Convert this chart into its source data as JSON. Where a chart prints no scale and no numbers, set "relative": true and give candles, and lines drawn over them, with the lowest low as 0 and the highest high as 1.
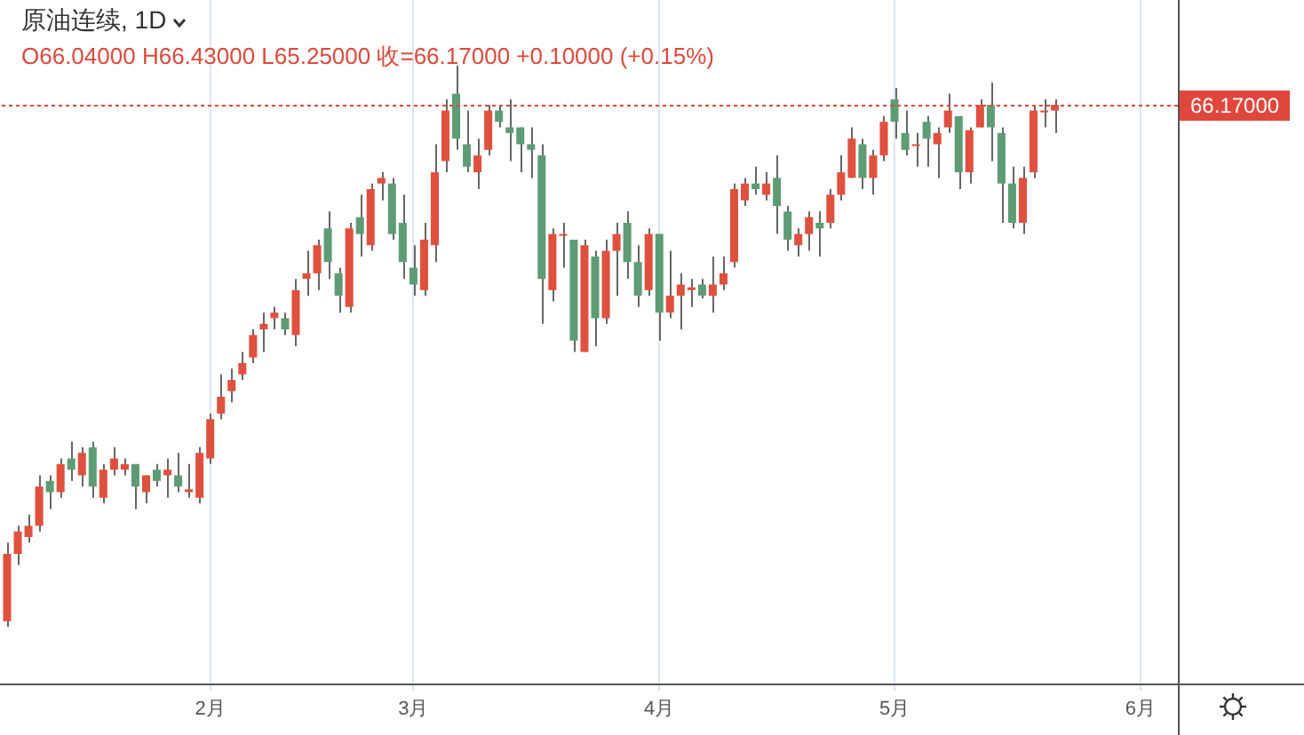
{
  "chart_data": {
    "type": "candlestick",
    "title": "原油连续, 1D",
    "subtitle": "O66.04000 H66.43000 L65.25000 收=66.17000 +0.10000 (+0.15%)",
    "relative": true,
    "grid": "x",
    "tick_labels": "x",
    "categories": [
      null,
      null,
      null,
      null,
      null,
      null,
      null,
      null,
      null,
      null,
      null,
      null,
      null,
      null,
      null,
      null,
      null,
      null,
      null,
      "2月",
      null,
      null,
      null,
      null,
      null,
      null,
      null,
      null,
      null,
      null,
      null,
      null,
      null,
      null,
      null,
      null,
      null,
      null,
      "3月",
      null,
      null,
      null,
      null,
      null,
      null,
      null,
      null,
      null,
      null,
      null,
      null,
      null,
      null,
      null,
      null,
      null,
      null,
      null,
      null,
      null,
      null,
      "4月",
      null,
      null,
      null,
      null,
      null,
      null,
      null,
      null,
      null,
      null,
      null,
      null,
      null,
      null,
      null,
      null,
      null,
      null,
      null,
      null,
      null,
      "5月",
      null,
      null,
      null,
      null,
      null,
      null,
      null,
      null,
      null,
      null,
      null,
      null,
      null,
      null,
      null,
      null,
      null,
      null,
      null,
      null,
      null,
      null,
      "6月",
      null,
      null,
      null
    ],
    "ohlc": [
      [
        0.01,
        0.15,
        0,
        0.13
      ],
      [
        0.13,
        0.18,
        0.11,
        0.17
      ],
      [
        0.16,
        0.2,
        0.15,
        0.18
      ],
      [
        0.18,
        0.27,
        0.17,
        0.25
      ],
      [
        0.26,
        0.27,
        0.21,
        0.24
      ],
      [
        0.24,
        0.3,
        0.23,
        0.29
      ],
      [
        0.3,
        0.33,
        0.26,
        0.28
      ],
      [
        0.27,
        0.32,
        0.25,
        0.31
      ],
      [
        0.32,
        0.33,
        0.23,
        0.25
      ],
      [
        0.23,
        0.29,
        0.22,
        0.28
      ],
      [
        0.28,
        0.32,
        0.27,
        0.3
      ],
      [
        0.28,
        0.3,
        0.27,
        0.29
      ],
      [
        0.29,
        0.29,
        0.21,
        0.25
      ],
      [
        0.24,
        0.27,
        0.22,
        0.27
      ],
      [
        0.28,
        0.29,
        0.25,
        0.26
      ],
      [
        0.27,
        0.3,
        0.23,
        0.28
      ],
      [
        0.27,
        0.31,
        0.24,
        0.25
      ],
      [
        0.24,
        0.29,
        0.23,
        0.245
      ],
      [
        0.23,
        0.32,
        0.22,
        0.31
      ],
      [
        0.3,
        0.38,
        0.29,
        0.37
      ],
      [
        0.38,
        0.45,
        0.37,
        0.41
      ],
      [
        0.42,
        0.46,
        0.4,
        0.44
      ],
      [
        0.45,
        0.49,
        0.44,
        0.47
      ],
      [
        0.48,
        0.53,
        0.47,
        0.52
      ],
      [
        0.53,
        0.56,
        0.49,
        0.54
      ],
      [
        0.55,
        0.57,
        0.53,
        0.56
      ],
      [
        0.55,
        0.56,
        0.52,
        0.53
      ],
      [
        0.52,
        0.62,
        0.5,
        0.6
      ],
      [
        0.62,
        0.67,
        0.59,
        0.63
      ],
      [
        0.63,
        0.69,
        0.6,
        0.68
      ],
      [
        0.71,
        0.74,
        0.62,
        0.65
      ],
      [
        0.63,
        0.64,
        0.56,
        0.59
      ],
      [
        0.57,
        0.72,
        0.56,
        0.71
      ],
      [
        0.73,
        0.77,
        0.66,
        0.7
      ],
      [
        0.68,
        0.79,
        0.67,
        0.78
      ],
      [
        0.79,
        0.81,
        0.76,
        0.8
      ],
      [
        0.79,
        0.8,
        0.69,
        0.7
      ],
      [
        0.72,
        0.77,
        0.62,
        0.65
      ],
      [
        0.64,
        0.68,
        0.59,
        0.61
      ],
      [
        0.6,
        0.72,
        0.59,
        0.69
      ],
      [
        0.68,
        0.86,
        0.65,
        0.81
      ],
      [
        0.83,
        0.94,
        0.81,
        0.92
      ],
      [
        0.95,
        1,
        0.85,
        0.87
      ],
      [
        0.86,
        0.92,
        0.81,
        0.82
      ],
      [
        0.81,
        0.87,
        0.78,
        0.84
      ],
      [
        0.85,
        0.93,
        0.84,
        0.92
      ],
      [
        0.92,
        0.93,
        0.89,
        0.9
      ],
      [
        0.89,
        0.94,
        0.83,
        0.88
      ],
      [
        0.89,
        0.89,
        0.81,
        0.86
      ],
      [
        0.86,
        0.89,
        0.8,
        0.85
      ],
      [
        0.84,
        0.86,
        0.54,
        0.62
      ],
      [
        0.6,
        0.71,
        0.58,
        0.7
      ],
      [
        0.7,
        0.72,
        0.64,
        0.7
      ],
      [
        0.69,
        0.69,
        0.49,
        0.51
      ],
      [
        0.49,
        0.69,
        0.49,
        0.68
      ],
      [
        0.66,
        0.67,
        0.5,
        0.55
      ],
      [
        0.55,
        0.69,
        0.54,
        0.67
      ],
      [
        0.67,
        0.72,
        0.59,
        0.7
      ],
      [
        0.72,
        0.74,
        0.62,
        0.65
      ],
      [
        0.65,
        0.68,
        0.57,
        0.59
      ],
      [
        0.6,
        0.71,
        0.59,
        0.7
      ],
      [
        0.7,
        0.7,
        0.51,
        0.56
      ],
      [
        0.56,
        0.67,
        0.55,
        0.59
      ],
      [
        0.59,
        0.63,
        0.53,
        0.61
      ],
      [
        0.6,
        0.62,
        0.57,
        0.605
      ],
      [
        0.61,
        0.62,
        0.585,
        0.59
      ],
      [
        0.59,
        0.66,
        0.56,
        0.61
      ],
      [
        0.61,
        0.66,
        0.6,
        0.63
      ],
      [
        0.65,
        0.79,
        0.64,
        0.78
      ],
      [
        0.76,
        0.8,
        0.75,
        0.79
      ],
      [
        0.79,
        0.82,
        0.77,
        0.78
      ],
      [
        0.77,
        0.81,
        0.76,
        0.79
      ],
      [
        0.8,
        0.84,
        0.7,
        0.75
      ],
      [
        0.74,
        0.75,
        0.67,
        0.69
      ],
      [
        0.68,
        0.71,
        0.66,
        0.7
      ],
      [
        0.7,
        0.74,
        0.67,
        0.73
      ],
      [
        0.72,
        0.74,
        0.66,
        0.71
      ],
      [
        0.72,
        0.78,
        0.71,
        0.77
      ],
      [
        0.77,
        0.84,
        0.76,
        0.81
      ],
      [
        0.8,
        0.89,
        0.8,
        0.87
      ],
      [
        0.86,
        0.87,
        0.78,
        0.8
      ],
      [
        0.8,
        0.85,
        0.77,
        0.84
      ],
      [
        0.84,
        0.91,
        0.83,
        0.9
      ],
      [
        0.94,
        0.96,
        0.87,
        0.9
      ],
      [
        0.88,
        0.92,
        0.84,
        0.85
      ],
      [
        0.86,
        0.88,
        0.82,
        0.86
      ],
      [
        0.9,
        0.91,
        0.82,
        0.87
      ],
      [
        0.86,
        0.89,
        0.8,
        0.88
      ],
      [
        0.89,
        0.95,
        0.88,
        0.92
      ],
      [
        0.91,
        0.91,
        0.78,
        0.81
      ],
      [
        0.81,
        0.89,
        0.79,
        0.885
      ],
      [
        0.89,
        0.94,
        0.89,
        0.93
      ],
      [
        0.93,
        0.97,
        0.83,
        0.89
      ],
      [
        0.88,
        0.89,
        0.72,
        0.79
      ],
      [
        0.79,
        0.82,
        0.71,
        0.72
      ],
      [
        0.72,
        0.82,
        0.7,
        0.8
      ],
      [
        0.81,
        0.93,
        0.8,
        0.92
      ],
      [
        0.92,
        0.94,
        0.89,
        0.92
      ],
      [
        0.92,
        0.94,
        0.88,
        0.93
      ],
      null,
      null,
      null,
      null,
      null,
      null,
      null,
      null,
      null,
      null,
      null
    ],
    "colors": [
      "#e0503e",
      "#e0503e",
      "#e0503e",
      "#e0503e",
      "#5d9c74",
      "#e0503e",
      "#5d9c74",
      "#e0503e",
      "#5d9c74",
      "#e0503e",
      "#e0503e",
      "#e0503e",
      "#5d9c74",
      "#e0503e",
      "#5d9c74",
      "#e0503e",
      "#5d9c74",
      "#e0503e",
      "#e0503e",
      "#e0503e",
      "#e0503e",
      "#e0503e",
      "#e0503e",
      "#e0503e",
      "#e0503e",
      "#e0503e",
      "#5d9c74",
      "#e0503e",
      "#e0503e",
      "#e0503e",
      "#5d9c74",
      "#5d9c74",
      "#e0503e",
      "#5d9c74",
      "#e0503e",
      "#e0503e",
      "#5d9c74",
      "#5d9c74",
      "#5d9c74",
      "#e0503e",
      "#e0503e",
      "#e0503e",
      "#5d9c74",
      "#5d9c74",
      "#e0503e",
      "#e0503e",
      "#5d9c74",
      "#5d9c74",
      "#5d9c74",
      "#5d9c74",
      "#5d9c74",
      "#e0503e",
      "#e0503e",
      "#5d9c74",
      "#e0503e",
      "#5d9c74",
      "#e0503e",
      "#e0503e",
      "#5d9c74",
      "#5d9c74",
      "#e0503e",
      "#5d9c74",
      "#e0503e",
      "#e0503e",
      "#e0503e",
      "#5d9c74",
      "#e0503e",
      "#e0503e",
      "#e0503e",
      "#e0503e",
      "#5d9c74",
      "#e0503e",
      "#5d9c74",
      "#5d9c74",
      "#e0503e",
      "#e0503e",
      "#5d9c74",
      "#e0503e",
      "#e0503e",
      "#e0503e",
      "#5d9c74",
      "#e0503e",
      "#e0503e",
      "#5d9c74",
      "#5d9c74",
      "#e0503e",
      "#5d9c74",
      "#e0503e",
      "#e0503e",
      "#5d9c74",
      "#e0503e",
      "#e0503e",
      "#5d9c74",
      "#5d9c74",
      "#5d9c74",
      "#e0503e",
      "#e0503e",
      "#e0503e",
      "#e0503e",
      null,
      null,
      null,
      null,
      null,
      null,
      null,
      null,
      null,
      null,
      null
    ],
    "annotations": [
      "66.17000"
    ],
    "ref_lines": [
      {
        "axis": "y",
        "value": 0.93,
        "color": "#e0473c",
        "line_style": "dotted"
      }
    ]
  }
}
